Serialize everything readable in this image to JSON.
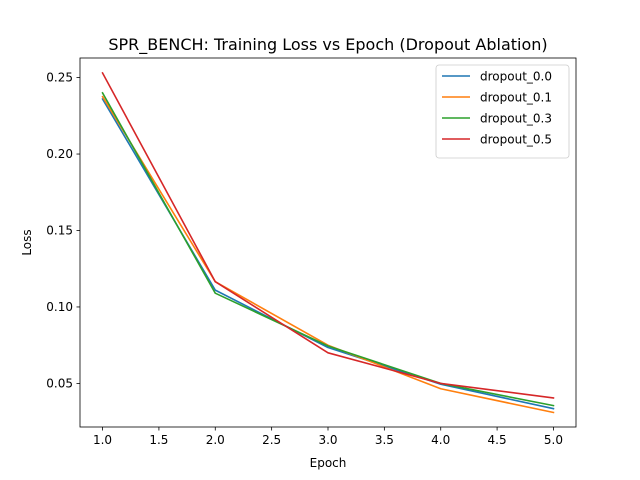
{
  "chart_data": {
    "type": "line",
    "title": "SPR_BENCH: Training Loss vs Epoch (Dropout Ablation)",
    "xlabel": "Epoch",
    "ylabel": "Loss",
    "x": [
      1.0,
      2.0,
      3.0,
      4.0,
      5.0
    ],
    "xlim": [
      0.8,
      5.2
    ],
    "ylim": [
      0.0215,
      0.2628
    ],
    "xticks": [
      1.0,
      1.5,
      2.0,
      2.5,
      3.0,
      3.5,
      4.0,
      4.5,
      5.0
    ],
    "xtick_labels": [
      "1.0",
      "1.5",
      "2.0",
      "2.5",
      "3.0",
      "3.5",
      "4.0",
      "4.5",
      "5.0"
    ],
    "yticks": [
      0.05,
      0.1,
      0.15,
      0.2,
      0.25
    ],
    "ytick_labels": [
      "0.05",
      "0.10",
      "0.15",
      "0.20",
      "0.25"
    ],
    "grid": false,
    "legend_position": "top-right",
    "series": [
      {
        "name": "dropout_0.0",
        "color": "#1f77b4",
        "values": [
          0.236,
          0.111,
          0.0735,
          0.0495,
          0.0335
        ]
      },
      {
        "name": "dropout_0.1",
        "color": "#ff7f0e",
        "values": [
          0.2375,
          0.1165,
          0.075,
          0.0465,
          0.031
        ]
      },
      {
        "name": "dropout_0.3",
        "color": "#2ca02c",
        "values": [
          0.24,
          0.109,
          0.0745,
          0.05,
          0.0355
        ]
      },
      {
        "name": "dropout_0.5",
        "color": "#d62728",
        "values": [
          0.253,
          0.1165,
          0.07,
          0.05,
          0.0405
        ]
      }
    ]
  }
}
